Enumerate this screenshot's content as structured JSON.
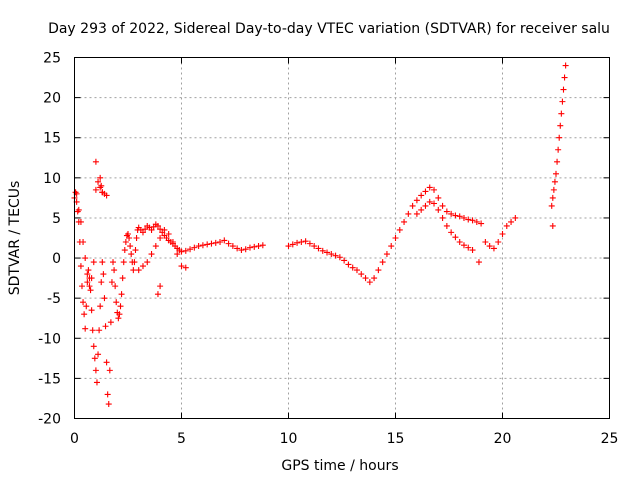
{
  "chart_data": {
    "type": "scatter",
    "title": "Day 293 of 2022, Sidereal Day-to-day VTEC variation (SDTVAR) for receiver salu",
    "xlabel": "GPS time / hours",
    "ylabel": "SDTVAR / TECUs",
    "xlim": [
      0,
      25
    ],
    "ylim": [
      -20,
      25
    ],
    "xticks": [
      0,
      5,
      10,
      15,
      20,
      25
    ],
    "yticks": [
      -20,
      -15,
      -10,
      -5,
      0,
      5,
      10,
      15,
      20,
      25
    ],
    "grid": true,
    "marker": "+",
    "color": "#ff0000",
    "series": [
      {
        "name": "SDTVAR",
        "x": [
          0.0,
          0.05,
          0.1,
          0.15,
          0.2,
          0.25,
          0.3,
          0.35,
          0.4,
          0.45,
          0.5,
          0.55,
          0.6,
          0.65,
          0.7,
          0.75,
          0.8,
          0.85,
          0.9,
          0.95,
          1.0,
          1.05,
          1.1,
          1.15,
          1.2,
          1.25,
          1.3,
          1.35,
          1.4,
          1.45,
          1.5,
          1.55,
          1.6,
          1.65,
          1.7,
          1.75,
          1.8,
          1.85,
          1.9,
          1.95,
          2.0,
          2.05,
          2.1,
          2.15,
          2.2,
          2.25,
          2.3,
          2.35,
          2.4,
          2.45,
          2.5,
          2.55,
          2.6,
          2.65,
          2.7,
          2.75,
          2.8,
          2.85,
          2.9,
          2.95,
          3.0,
          3.1,
          3.2,
          3.3,
          3.4,
          3.5,
          3.6,
          3.7,
          3.8,
          3.9,
          4.0,
          4.1,
          4.2,
          4.3,
          4.4,
          4.5,
          4.6,
          4.7,
          4.8,
          4.9,
          5.0,
          5.2,
          5.4,
          5.6,
          5.8,
          6.0,
          6.2,
          6.4,
          6.6,
          6.8,
          7.0,
          7.2,
          7.4,
          7.6,
          7.8,
          8.0,
          8.2,
          8.4,
          8.6,
          8.8,
          10.0,
          10.2,
          10.4,
          10.6,
          10.8,
          11.0,
          11.2,
          11.4,
          11.6,
          11.8,
          12.0,
          12.2,
          12.4,
          12.6,
          12.8,
          13.0,
          13.2,
          13.4,
          13.6,
          13.8,
          14.0,
          14.2,
          14.4,
          14.6,
          14.8,
          15.0,
          15.2,
          15.4,
          15.6,
          15.8,
          16.0,
          16.2,
          16.4,
          16.6,
          16.8,
          17.0,
          17.2,
          17.4,
          17.6,
          17.8,
          18.0,
          18.2,
          18.4,
          18.6,
          18.8,
          19.0,
          19.2,
          19.4,
          19.6,
          19.8,
          20.0,
          20.2,
          20.4,
          20.6,
          0.1,
          0.2,
          0.3,
          0.4,
          0.5,
          0.6,
          0.7,
          0.8,
          0.9,
          1.0,
          1.1,
          1.2,
          1.3,
          1.4,
          1.5,
          3.0,
          3.2,
          3.4,
          3.6,
          3.8,
          4.0,
          4.2,
          4.4,
          4.6,
          4.8,
          5.0,
          5.2,
          16.0,
          16.2,
          16.4,
          16.6,
          16.8,
          17.0,
          17.2,
          17.4,
          17.6,
          17.8,
          18.0,
          18.2,
          18.4,
          18.6,
          22.3,
          22.35,
          22.4,
          22.45,
          22.5,
          22.55,
          22.6,
          22.65,
          22.7,
          22.75,
          22.8,
          22.85,
          22.9,
          22.95,
          1.0,
          1.2,
          1.25,
          1.3,
          3.9,
          4.0,
          18.9,
          22.35
        ],
        "y": [
          7.5,
          8.2,
          7.0,
          5.8,
          4.5,
          2.0,
          -1.0,
          -3.5,
          -5.5,
          -7.0,
          -8.8,
          -6.0,
          -3.0,
          -1.5,
          -2.5,
          -4.0,
          -6.5,
          -9.0,
          -11.0,
          -12.5,
          -14.0,
          -15.5,
          -12.0,
          -9.0,
          -6.0,
          -3.0,
          -0.5,
          -2.0,
          -5.0,
          -8.5,
          -13.0,
          -17.0,
          -18.2,
          -14.0,
          -8.0,
          -3.0,
          -0.5,
          -1.5,
          -3.5,
          -5.5,
          -6.8,
          -7.5,
          -7.0,
          -6.0,
          -4.5,
          -2.5,
          -0.5,
          1.0,
          2.0,
          2.8,
          3.0,
          2.5,
          1.5,
          0.5,
          -0.5,
          -1.5,
          -0.5,
          1.0,
          2.5,
          3.5,
          3.8,
          3.5,
          3.2,
          3.6,
          4.0,
          3.8,
          3.5,
          3.9,
          4.2,
          4.0,
          3.6,
          3.2,
          2.8,
          2.5,
          2.2,
          2.0,
          1.8,
          1.5,
          1.2,
          1.0,
          0.8,
          0.9,
          1.1,
          1.3,
          1.5,
          1.6,
          1.7,
          1.8,
          1.9,
          2.0,
          2.2,
          1.8,
          1.5,
          1.2,
          1.0,
          1.1,
          1.3,
          1.4,
          1.5,
          1.6,
          1.5,
          1.7,
          1.9,
          2.0,
          2.1,
          1.8,
          1.5,
          1.2,
          0.9,
          0.7,
          0.5,
          0.3,
          0.1,
          -0.3,
          -0.8,
          -1.2,
          -1.5,
          -2.0,
          -2.5,
          -3.0,
          -2.5,
          -1.5,
          -0.5,
          0.5,
          1.5,
          2.5,
          3.5,
          4.5,
          5.5,
          6.5,
          7.2,
          7.8,
          8.3,
          8.8,
          8.5,
          7.5,
          6.5,
          5.8,
          5.5,
          5.3,
          5.2,
          5.0,
          4.8,
          4.7,
          4.5,
          4.3,
          2.0,
          1.5,
          1.2,
          2.0,
          3.0,
          4.0,
          4.5,
          5.0,
          8.0,
          6.0,
          4.5,
          2.0,
          0.0,
          -2.0,
          -3.5,
          -2.5,
          -0.5,
          8.5,
          9.5,
          8.8,
          8.2,
          8.0,
          7.8,
          -1.5,
          -1.0,
          -0.5,
          0.5,
          1.5,
          2.5,
          3.5,
          3.0,
          2.0,
          0.5,
          -1.0,
          -1.2,
          5.5,
          6.0,
          6.5,
          7.0,
          6.8,
          6.0,
          5.0,
          4.0,
          3.2,
          2.6,
          2.0,
          1.6,
          1.3,
          1.0,
          6.5,
          7.5,
          8.5,
          9.5,
          10.5,
          12.0,
          13.5,
          15.0,
          16.5,
          18.0,
          19.5,
          21.0,
          22.5,
          24.0,
          12.0,
          10.0,
          9.0,
          8.2,
          -4.5,
          -3.5,
          -0.5,
          4.0
        ]
      }
    ]
  }
}
